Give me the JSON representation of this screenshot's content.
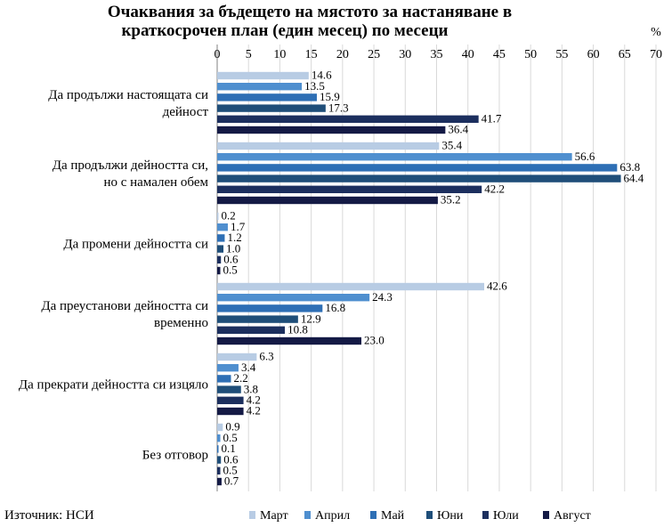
{
  "chart_data": {
    "type": "bar",
    "orientation": "horizontal",
    "title_line1": "Очаквания за бъдещето на мястото за настаняване в",
    "title_line2": "краткосрочен план (един месец) по месеци",
    "unit_label": "%",
    "xlim": [
      0,
      70
    ],
    "ticks": [
      "0",
      "5",
      "10",
      "15",
      "20",
      "25",
      "30",
      "35",
      "40",
      "45",
      "50",
      "55",
      "60",
      "65",
      "70"
    ],
    "grid": true,
    "legend_position": "bottom",
    "categories": [
      {
        "lines": [
          "Да продължи настоящата си",
          "дейност"
        ]
      },
      {
        "lines": [
          "Да продължи дейността  си,",
          "но с намален обем"
        ]
      },
      {
        "lines": [
          "Да промени дейността  си"
        ]
      },
      {
        "lines": [
          "Да преустанови дейността си",
          "временно"
        ]
      },
      {
        "lines": [
          "Да прекрати дейността  си изцяло"
        ]
      },
      {
        "lines": [
          "Без отговор"
        ]
      }
    ],
    "series": [
      {
        "name": "Март",
        "color": "#b8cce4",
        "values": [
          14.6,
          35.4,
          0.2,
          42.6,
          6.3,
          0.9
        ],
        "labels": [
          "14.6",
          "35.4",
          "0.2",
          "42.6",
          "6.3",
          "0.9"
        ]
      },
      {
        "name": "Април",
        "color": "#4f8fcf",
        "values": [
          13.5,
          56.6,
          1.7,
          24.3,
          3.4,
          0.5
        ],
        "labels": [
          "13.5",
          "56.6",
          "1.7",
          "24.3",
          "3.4",
          "0.5"
        ]
      },
      {
        "name": "Май",
        "color": "#2e6fb5",
        "values": [
          15.9,
          63.8,
          1.2,
          16.8,
          2.2,
          0.1
        ],
        "labels": [
          "15.9",
          "63.8",
          "1.2",
          "16.8",
          "2.2",
          "0.1"
        ]
      },
      {
        "name": "Юни",
        "color": "#1f4e79",
        "values": [
          17.3,
          64.4,
          1.0,
          12.9,
          3.8,
          0.6
        ],
        "labels": [
          "17.3",
          "64.4",
          "1.0",
          "12.9",
          "3.8",
          "0.6"
        ]
      },
      {
        "name": "Юли",
        "color": "#1c2f5e",
        "values": [
          41.7,
          42.2,
          0.6,
          10.8,
          4.2,
          0.5
        ],
        "labels": [
          "41.7",
          "42.2",
          "0.6",
          "10.8",
          "4.2",
          "0.5"
        ]
      },
      {
        "name": "Август",
        "color": "#141a45",
        "values": [
          36.4,
          35.2,
          0.5,
          23.0,
          4.2,
          0.7
        ],
        "labels": [
          "36.4",
          "35.2",
          "0.5",
          "23.0",
          "4.2",
          "0.7"
        ]
      }
    ],
    "source": "Източник: НСИ"
  }
}
